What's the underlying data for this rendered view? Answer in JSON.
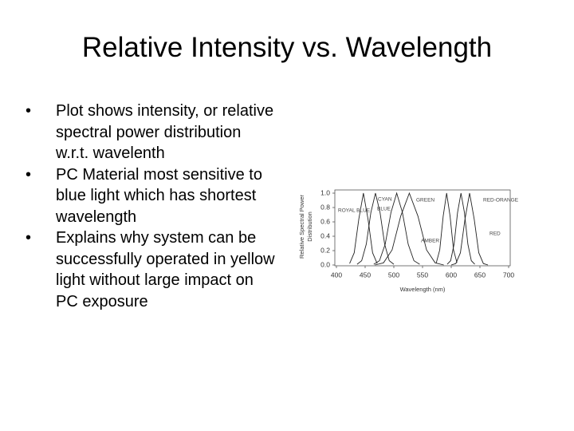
{
  "title": "Relative Intensity vs. Wavelength",
  "bullets": [
    "Plot shows intensity, or relative spectral power distribution w.r.t. wavelenth",
    "PC Material most sensitive to blue light which has shortest wavelength",
    "Explains why system can be successfully operated in yellow light without large impact on PC exposure"
  ],
  "chart_data": {
    "type": "line",
    "x_label": "Wavelength (nm)",
    "y_label": [
      "Relative Spectral Power",
      "Distribution"
    ],
    "xlim": [
      400,
      700
    ],
    "xticks": [
      400,
      450,
      500,
      550,
      600,
      650,
      700
    ],
    "ylim": [
      0,
      1
    ],
    "yticks": [
      {
        "value": 0,
        "label": "0.0"
      },
      0.2,
      0.4,
      0.6,
      0.8,
      {
        "value": 1,
        "label": "1.0"
      }
    ],
    "color": "#222",
    "series": [
      {
        "name": "ROYAL BLUE",
        "x": [
          423,
          431,
          439,
          447,
          455,
          463,
          471
        ],
        "values": [
          0.02,
          0.17,
          0.64,
          1.0,
          0.64,
          0.17,
          0.02
        ]
      },
      {
        "name": "BLUE",
        "x": [
          436,
          444,
          452,
          460,
          468,
          476,
          484,
          492,
          500
        ],
        "values": [
          0.01,
          0.06,
          0.29,
          0.73,
          1.0,
          0.73,
          0.29,
          0.06,
          0.01
        ]
      },
      {
        "name": "CYAN",
        "x": [
          465,
          475,
          485,
          495,
          505,
          515,
          525,
          535,
          545
        ],
        "values": [
          0.01,
          0.06,
          0.29,
          0.73,
          1.0,
          0.73,
          0.29,
          0.06,
          0.01
        ]
      },
      {
        "name": "GREEN",
        "x": [
          467,
          482,
          497,
          512,
          527,
          542,
          557,
          572,
          587
        ],
        "values": [
          0.0,
          0.03,
          0.21,
          0.68,
          1.0,
          0.68,
          0.21,
          0.03,
          0.0
        ]
      },
      {
        "name": "AMBER",
        "x": [
          574,
          580,
          586,
          592,
          598,
          604,
          610
        ],
        "values": [
          0.03,
          0.21,
          0.68,
          1.0,
          0.68,
          0.21,
          0.03
        ]
      },
      {
        "name": "RED-ORANGE",
        "x": [
          593,
          599,
          605,
          611,
          617,
          623,
          629,
          635,
          641
        ],
        "values": [
          0.01,
          0.06,
          0.29,
          0.73,
          1.0,
          0.73,
          0.29,
          0.06,
          0.01
        ]
      },
      {
        "name": "RED",
        "x": [
          600,
          608,
          616,
          624,
          632,
          640,
          648,
          656,
          664
        ],
        "values": [
          0.0,
          0.02,
          0.17,
          0.64,
          1.0,
          0.64,
          0.17,
          0.02,
          0.0
        ]
      }
    ]
  }
}
